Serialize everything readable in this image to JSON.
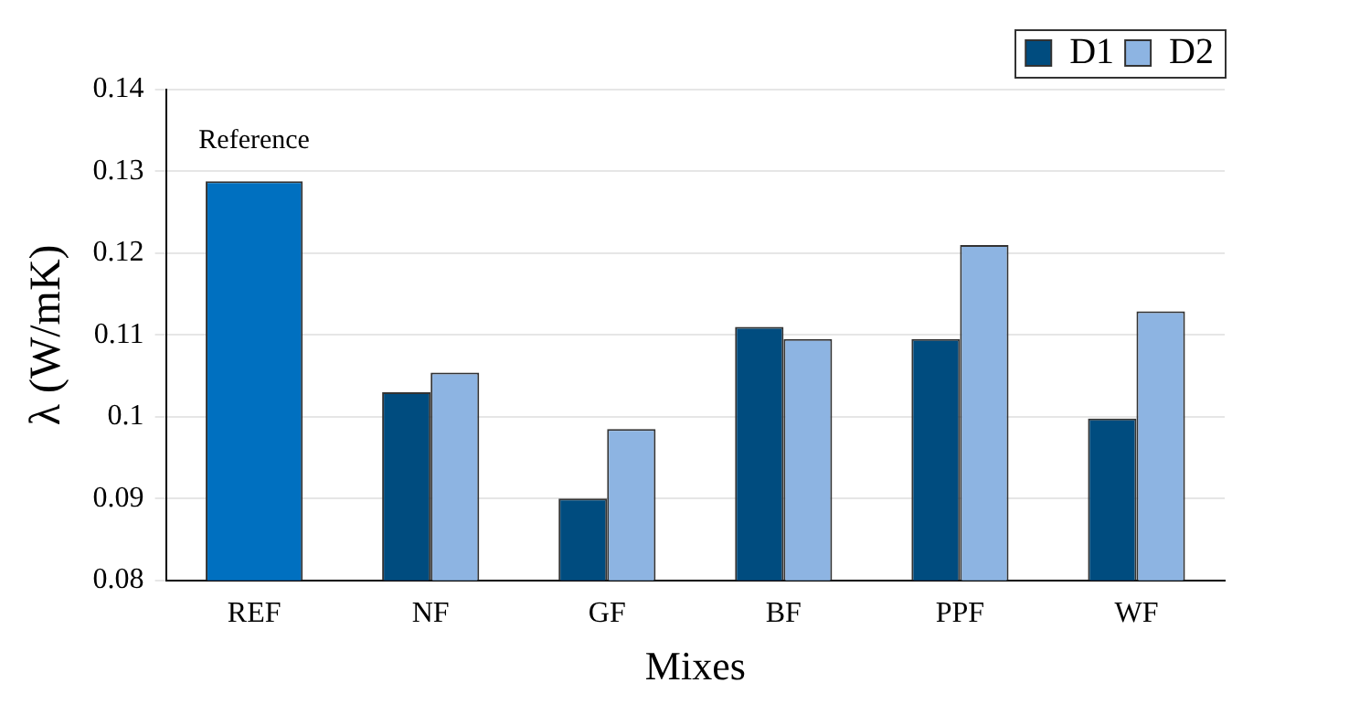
{
  "chart_data": {
    "type": "bar",
    "xlabel": "Mixes",
    "ylabel": "λ (W/mK)",
    "categories": [
      "REF",
      "NF",
      "GF",
      "BF",
      "PPF",
      "WF"
    ],
    "series": [
      {
        "color": "#0070c0",
        "values": [
          0.1288,
          null,
          null,
          null,
          null,
          null
        ]
      },
      {
        "name": "D1",
        "color": "#004c7f",
        "values": [
          null,
          0.103,
          0.09,
          0.111,
          0.1095,
          0.0998
        ]
      },
      {
        "name": "D2",
        "color": "#8db4e2",
        "values": [
          null,
          0.1054,
          0.0985,
          0.1095,
          0.121,
          0.1129
        ]
      }
    ],
    "ylim": [
      0.08,
      0.14
    ],
    "yticks": [
      0.08,
      0.09,
      0.1,
      0.11,
      0.12,
      0.13,
      0.14
    ],
    "grid": "y",
    "legend": "top right",
    "annotations": [
      "Reference"
    ]
  }
}
